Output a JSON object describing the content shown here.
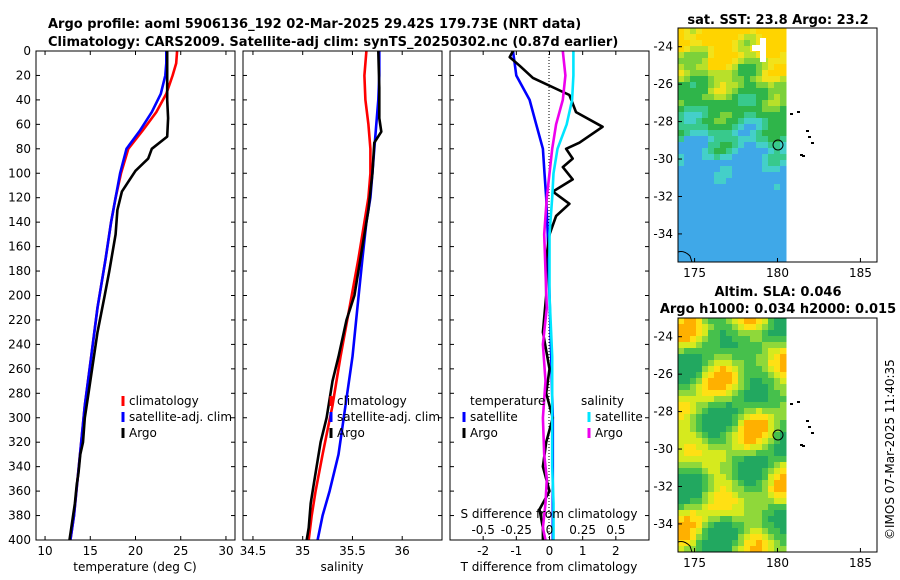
{
  "header": {
    "line1": "Argo profile: aoml 5906136_192 02-Mar-2025 29.42S 179.73E (NRT data)",
    "line2": "Climatology: CARS2009. Satellite-adj clim: synTS_20250302.nc (0.87d earlier)"
  },
  "timestamp": "©IMOS 07-Mar-2025 11:40:35",
  "colors": {
    "climatology": "#ff0000",
    "satellite": "#0000ff",
    "argo": "#000000",
    "salinity_satellite": "#00e5ff",
    "salinity_argo": "#ee00ee"
  },
  "chart_data": [
    {
      "type": "line",
      "id": "temperature",
      "xlabel": "temperature (deg C)",
      "ylabel": "",
      "xlim": [
        9,
        31
      ],
      "ylim": [
        400,
        0
      ],
      "xticks": [
        10,
        15,
        20,
        25,
        30
      ],
      "yticks": [
        0,
        20,
        40,
        60,
        80,
        100,
        120,
        140,
        160,
        180,
        200,
        220,
        240,
        260,
        280,
        300,
        320,
        340,
        360,
        380,
        400
      ],
      "legend": [
        "climatology",
        "satellite-adj. clim",
        "Argo"
      ],
      "series": [
        {
          "name": "climatology",
          "color": "#ff0000",
          "x": [
            24.6,
            24.5,
            24.1,
            23.4,
            22.3,
            20.8,
            19.2,
            18.4,
            17.8,
            17.3,
            16.7,
            15.8,
            15.1,
            14.4,
            14.0,
            13.6,
            13.2,
            12.8
          ],
          "y": [
            0,
            10,
            20,
            35,
            50,
            65,
            80,
            100,
            120,
            140,
            170,
            210,
            250,
            290,
            320,
            350,
            380,
            400
          ]
        },
        {
          "name": "satellite-adj. clim",
          "color": "#0000ff",
          "x": [
            23.4,
            23.4,
            23.3,
            22.8,
            21.8,
            20.5,
            19.0,
            18.3,
            17.8,
            17.3,
            16.7,
            15.8,
            15.1,
            14.4,
            14.0,
            13.6,
            13.2,
            12.8
          ],
          "y": [
            0,
            10,
            20,
            35,
            50,
            65,
            80,
            100,
            120,
            140,
            170,
            210,
            250,
            290,
            320,
            350,
            380,
            400
          ]
        },
        {
          "name": "Argo",
          "color": "#000000",
          "x": [
            23.5,
            23.5,
            23.5,
            23.6,
            23.5,
            21.8,
            21.4,
            20.0,
            18.5,
            18.0,
            17.8,
            17.1,
            16.6,
            15.8,
            15.2,
            14.8,
            14.4,
            14.2,
            13.9,
            13.7,
            13.5,
            13.3,
            13.1,
            12.9,
            12.7
          ],
          "y": [
            0,
            20,
            40,
            55,
            70,
            80,
            88,
            98,
            115,
            130,
            150,
            180,
            200,
            230,
            260,
            280,
            300,
            320,
            330,
            345,
            355,
            370,
            380,
            390,
            400
          ]
        }
      ]
    },
    {
      "type": "line",
      "id": "salinity",
      "xlabel": "salinity",
      "ylabel": "",
      "xlim": [
        34.4,
        36.4
      ],
      "ylim": [
        400,
        0
      ],
      "xticks": [
        34.5,
        35,
        35.5,
        36
      ],
      "xticklabels": [
        "34.5",
        "35",
        "35.5",
        "36"
      ],
      "legend": [
        "climatology",
        "satellite-adj. clim",
        "Argo"
      ],
      "series": [
        {
          "name": "climatology",
          "color": "#ff0000",
          "x": [
            35.64,
            35.62,
            35.63,
            35.66,
            35.68,
            35.68,
            35.66,
            35.62,
            35.56,
            35.47,
            35.38,
            35.3,
            35.2,
            35.13,
            35.09,
            35.06
          ],
          "y": [
            0,
            20,
            40,
            60,
            80,
            100,
            120,
            140,
            170,
            210,
            250,
            290,
            330,
            360,
            380,
            400
          ]
        },
        {
          "name": "satellite-adj. clim",
          "color": "#0000ff",
          "x": [
            35.77,
            35.77,
            35.76,
            35.74,
            35.72,
            35.7,
            35.68,
            35.64,
            35.6,
            35.55,
            35.5,
            35.43,
            35.36,
            35.27,
            35.2,
            35.15
          ],
          "y": [
            0,
            20,
            40,
            60,
            80,
            100,
            120,
            140,
            170,
            210,
            250,
            290,
            330,
            360,
            380,
            400
          ]
        },
        {
          "name": "Argo",
          "color": "#000000",
          "x": [
            35.76,
            35.77,
            35.77,
            35.79,
            35.72,
            35.7,
            35.66,
            35.62,
            35.58,
            35.52,
            35.44,
            35.36,
            35.3,
            35.24,
            35.18,
            35.12,
            35.08,
            35.06,
            35.04
          ],
          "y": [
            0,
            30,
            55,
            66,
            75,
            100,
            130,
            150,
            170,
            200,
            220,
            250,
            270,
            300,
            320,
            350,
            370,
            390,
            400
          ]
        }
      ]
    },
    {
      "type": "line",
      "id": "difference",
      "xlabel": "T difference from climatology",
      "title_top": "S difference from climatology",
      "xlim": [
        -3,
        3
      ],
      "ylim": [
        400,
        0
      ],
      "xticks": [
        -2,
        -1,
        0,
        1,
        2
      ],
      "s_ticklabels": [
        "-0.5",
        "-0.25",
        "0",
        "0.25",
        "0.5"
      ],
      "legend_temperature": {
        "title": "temperature",
        "items": [
          "satellite",
          "Argo"
        ]
      },
      "legend_salinity": {
        "title": "salinity",
        "items": [
          "satellite",
          "Argo"
        ]
      },
      "series": [
        {
          "name": "temperature satellite",
          "color": "#0000ff",
          "x": [
            -1.1,
            -1.0,
            -0.6,
            -0.4,
            -0.2,
            -0.15,
            -0.1,
            -0.05,
            0,
            0.05,
            0.1,
            0.1
          ],
          "y": [
            0,
            20,
            40,
            60,
            80,
            100,
            120,
            150,
            200,
            250,
            300,
            400
          ]
        },
        {
          "name": "temperature Argo",
          "color": "#000000",
          "x": [
            -1.1,
            -1.2,
            -0.9,
            -0.5,
            0.6,
            0.8,
            1.6,
            0.9,
            0.5,
            0.7,
            0.4,
            0.7,
            0.1,
            0.6,
            0.2,
            0.0,
            -0.1,
            -0.1,
            -0.2,
            0.0,
            -0.1,
            0.1,
            -0.1,
            -0.2,
            0.0,
            -0.3,
            -0.2,
            -0.2
          ],
          "y": [
            0,
            5,
            12,
            22,
            36,
            50,
            62,
            75,
            80,
            88,
            95,
            105,
            115,
            125,
            135,
            150,
            170,
            200,
            230,
            260,
            280,
            300,
            320,
            340,
            360,
            375,
            390,
            400
          ]
        },
        {
          "name": "salinity satellite",
          "color": "#00e5ff",
          "x": [
            0.18,
            0.18,
            0.17,
            0.13,
            0.06,
            0.03,
            0.02,
            0.0,
            0.0,
            0.02,
            0.02,
            0.02,
            0.03,
            0.03
          ],
          "y": [
            0,
            20,
            40,
            60,
            80,
            100,
            120,
            150,
            200,
            250,
            300,
            340,
            370,
            400
          ]
        },
        {
          "name": "salinity Argo",
          "color": "#ee00ee",
          "x": [
            0.1,
            0.12,
            0.1,
            0.05,
            0.02,
            0.0,
            -0.02,
            -0.04,
            -0.03,
            -0.02,
            -0.05,
            -0.03,
            -0.05,
            -0.04,
            -0.02,
            -0.03,
            -0.05,
            -0.03
          ],
          "y": [
            0,
            20,
            40,
            60,
            80,
            100,
            120,
            150,
            180,
            210,
            240,
            270,
            300,
            330,
            350,
            370,
            390,
            400
          ]
        }
      ]
    },
    {
      "type": "heatmap",
      "id": "sst-map",
      "title": "sat. SST: 23.8 Argo: 23.2",
      "xlim": [
        174,
        186
      ],
      "ylim": [
        -35.5,
        -23
      ],
      "xticks": [
        175,
        180,
        185
      ],
      "yticks": [
        -24,
        -26,
        -28,
        -30,
        -32,
        -34
      ],
      "argo_position": [
        179.73,
        -29.42
      ]
    },
    {
      "type": "heatmap",
      "id": "sla-map",
      "title_line1": "Altim. SLA: 0.046",
      "title_line2": "Argo h1000: 0.034 h2000: 0.015",
      "xlim": [
        174,
        186
      ],
      "ylim": [
        -35.5,
        -23
      ],
      "xticks": [
        175,
        180,
        185
      ],
      "yticks": [
        -24,
        -26,
        -28,
        -30,
        -32,
        -34
      ],
      "argo_position": [
        179.73,
        -29.42
      ]
    }
  ]
}
